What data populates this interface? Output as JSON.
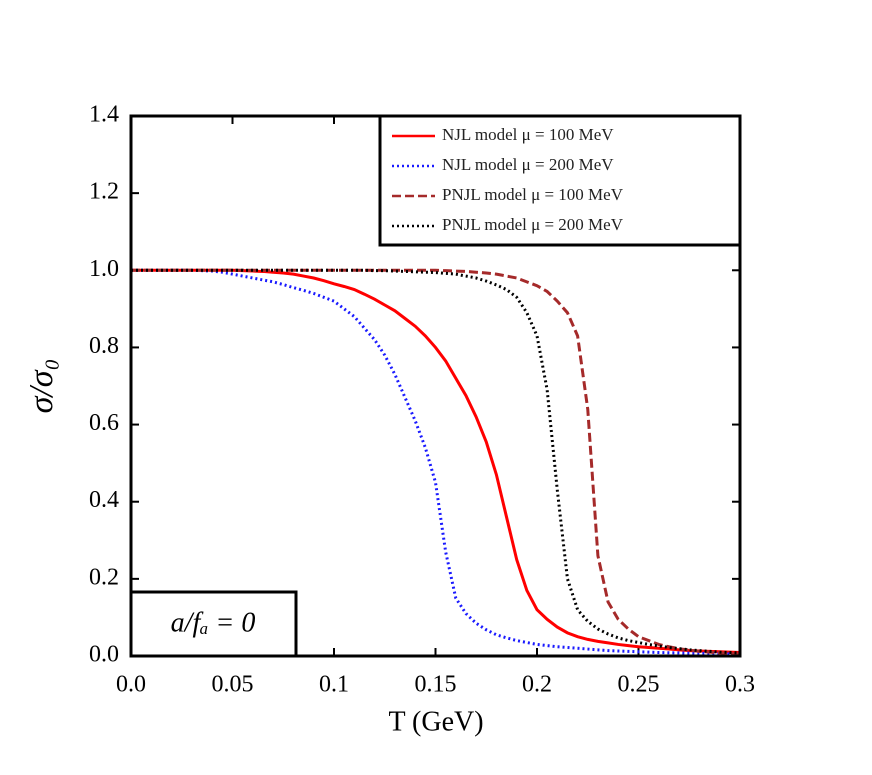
{
  "chart_data": {
    "type": "line",
    "x_label": "T (GeV)",
    "y_label": "σ/σ₀",
    "annotation": "a/fₐ = 0",
    "x": [
      0,
      0.005,
      0.01,
      0.015,
      0.02,
      0.025,
      0.03,
      0.035,
      0.04,
      0.045,
      0.05,
      0.055,
      0.06,
      0.065,
      0.07,
      0.075,
      0.08,
      0.085,
      0.09,
      0.095,
      0.1,
      0.105,
      0.11,
      0.115,
      0.12,
      0.125,
      0.13,
      0.135,
      0.14,
      0.145,
      0.15,
      0.155,
      0.16,
      0.165,
      0.17,
      0.175,
      0.18,
      0.185,
      0.19,
      0.195,
      0.2,
      0.205,
      0.21,
      0.215,
      0.22,
      0.225,
      0.23,
      0.235,
      0.24,
      0.245,
      0.25,
      0.255,
      0.26,
      0.265,
      0.27,
      0.275,
      0.28,
      0.285,
      0.29,
      0.295,
      0.3
    ],
    "series": [
      {
        "name": "NJL model μ = 100 MeV",
        "color": "#ff0000",
        "linestyle": "solid",
        "values": [
          1,
          1,
          1,
          1,
          1,
          1,
          1,
          1,
          1,
          1,
          1,
          0.999,
          0.998,
          0.997,
          0.995,
          0.993,
          0.99,
          0.985,
          0.98,
          0.973,
          0.965,
          0.958,
          0.95,
          0.938,
          0.925,
          0.91,
          0.895,
          0.875,
          0.855,
          0.83,
          0.8,
          0.765,
          0.72,
          0.675,
          0.62,
          0.555,
          0.47,
          0.36,
          0.25,
          0.17,
          0.12,
          0.095,
          0.075,
          0.06,
          0.05,
          0.043,
          0.038,
          0.034,
          0.03,
          0.027,
          0.024,
          0.022,
          0.02,
          0.018,
          0.016,
          0.014,
          0.013,
          0.012,
          0.011,
          0.01,
          0.009
        ]
      },
      {
        "name": "NJL model μ = 200 MeV",
        "color": "#1a1aff",
        "linestyle": "dotted",
        "values": [
          1,
          1,
          1,
          1,
          1,
          1,
          1,
          0.999,
          0.998,
          0.995,
          0.99,
          0.985,
          0.98,
          0.975,
          0.97,
          0.963,
          0.955,
          0.948,
          0.94,
          0.93,
          0.92,
          0.9,
          0.88,
          0.85,
          0.82,
          0.78,
          0.73,
          0.67,
          0.61,
          0.54,
          0.45,
          0.27,
          0.15,
          0.11,
          0.085,
          0.068,
          0.055,
          0.047,
          0.04,
          0.035,
          0.03,
          0.027,
          0.024,
          0.022,
          0.02,
          0.018,
          0.016,
          0.014,
          0.013,
          0.012,
          0.011,
          0.01,
          0.009,
          0.0085,
          0.008,
          0.0075,
          0.007,
          0.0065,
          0.006,
          0.0055,
          0.005
        ]
      },
      {
        "name": "PNJL model μ = 100 MeV",
        "color": "#a52a2a",
        "linestyle": "dashed",
        "values": [
          1,
          1,
          1,
          1,
          1,
          1,
          1,
          1,
          1,
          1,
          1,
          1,
          1,
          1,
          1,
          1,
          1,
          1,
          1,
          1,
          1,
          1,
          1,
          1,
          1,
          1,
          1,
          1,
          1,
          1,
          1,
          0.999,
          0.998,
          0.997,
          0.995,
          0.993,
          0.99,
          0.985,
          0.98,
          0.97,
          0.96,
          0.945,
          0.92,
          0.89,
          0.83,
          0.64,
          0.26,
          0.14,
          0.095,
          0.07,
          0.05,
          0.04,
          0.03,
          0.024,
          0.019,
          0.015,
          0.012,
          0.01,
          0.008,
          0.006,
          0.005
        ]
      },
      {
        "name": "PNJL model μ = 200 MeV",
        "color": "#000000",
        "linestyle": "dotted",
        "values": [
          1,
          1,
          1,
          1,
          1,
          1,
          1,
          1,
          1,
          1,
          1,
          1,
          1,
          1,
          1,
          1,
          1,
          1,
          1,
          1,
          1,
          1,
          1,
          1,
          0.999,
          0.999,
          0.998,
          0.997,
          0.996,
          0.995,
          0.994,
          0.992,
          0.99,
          0.985,
          0.98,
          0.972,
          0.962,
          0.95,
          0.93,
          0.89,
          0.83,
          0.69,
          0.43,
          0.2,
          0.12,
          0.09,
          0.07,
          0.057,
          0.047,
          0.04,
          0.035,
          0.03,
          0.026,
          0.022,
          0.019,
          0.016,
          0.014,
          0.012,
          0.01,
          0.009,
          0.008
        ]
      }
    ],
    "xlim": [
      0,
      0.3
    ],
    "xticks": [
      {
        "value": 0,
        "label": "0.0"
      },
      0.05,
      0.1,
      0.15,
      0.2,
      0.25,
      0.3
    ],
    "ylim": [
      0,
      1.4
    ],
    "yticks": [
      {
        "value": 0,
        "label": "0.0"
      },
      0.2,
      0.4,
      0.6,
      0.8,
      {
        "value": 1,
        "label": "1.0"
      },
      1.2,
      1.4
    ],
    "legend": "upper right"
  }
}
